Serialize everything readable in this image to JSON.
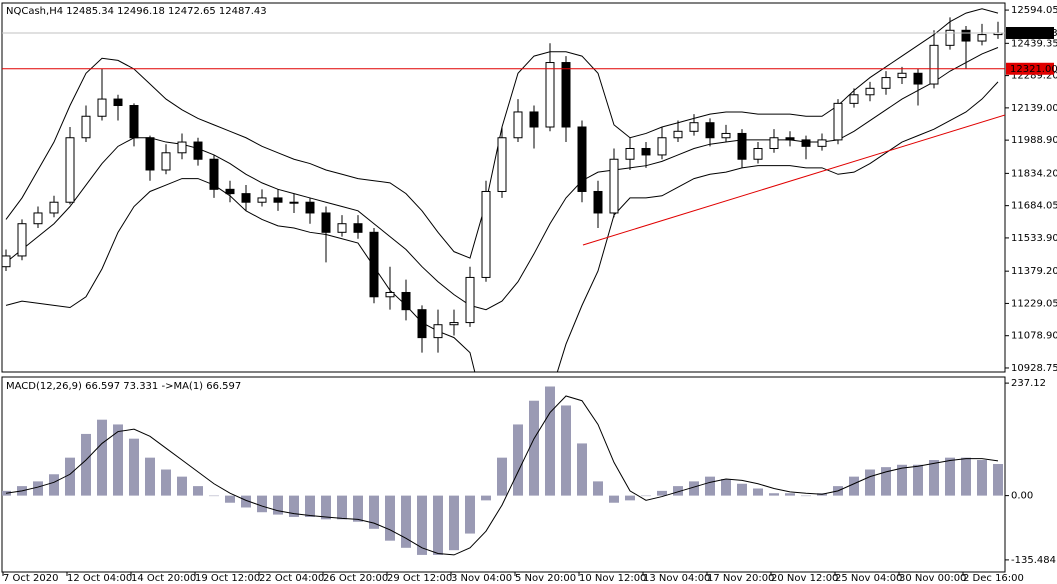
{
  "chart_data": [
    {
      "type": "candlestick",
      "title": "NQCash,H4  12485.34 12496.18 12472.65 12487.43",
      "categories": [
        "7 Oct 2020",
        null,
        null,
        null,
        "12 Oct 04:00",
        null,
        null,
        null,
        "14 Oct 20:00",
        null,
        null,
        null,
        "19 Oct 12:00",
        null,
        null,
        null,
        "22 Oct 04:00",
        null,
        null,
        null,
        "26 Oct 20:00",
        null,
        null,
        null,
        "29 Oct 12:00",
        null,
        null,
        null,
        "3 Nov 04:00",
        null,
        null,
        null,
        "5 Nov 20:00",
        null,
        null,
        null,
        "10 Nov 12:00",
        null,
        null,
        null,
        "13 Nov 04:00",
        null,
        null,
        null,
        "17 Nov 20:00",
        null,
        null,
        null,
        "20 Nov 12:00",
        null,
        null,
        null,
        "25 Nov 04:00",
        null,
        null,
        null,
        "30 Nov 00:00",
        null,
        null,
        null,
        "2 Dec 16:00",
        null,
        null
      ],
      "open": [
        11400,
        11450,
        11600,
        11650,
        11700,
        12000,
        12100,
        12180,
        12150,
        12000,
        11850,
        11930,
        11980,
        11900,
        11760,
        11740,
        11700,
        11720,
        11700,
        11700,
        11650,
        11560,
        11600,
        11560,
        11260,
        11280,
        11200,
        11070,
        11130,
        11140,
        11350,
        11750,
        12000,
        12120,
        12050,
        12350,
        12050,
        11750,
        11650,
        11900,
        11950,
        11920,
        12000,
        12030,
        12070,
        12000,
        12020,
        11900,
        11950,
        12000,
        11990,
        11960,
        11990,
        12160,
        12200,
        12230,
        12280,
        12300,
        12250,
        12430,
        12500,
        12450,
        12480
      ],
      "high": [
        11480,
        11620,
        11680,
        11730,
        12050,
        12150,
        12320,
        12200,
        12160,
        12010,
        11970,
        12020,
        12000,
        11920,
        11800,
        11780,
        11760,
        11760,
        11740,
        11720,
        11680,
        11640,
        11640,
        11580,
        11400,
        11340,
        11220,
        11200,
        11200,
        11400,
        11800,
        12050,
        12180,
        12150,
        12440,
        12380,
        12080,
        11800,
        11950,
        12000,
        11980,
        12050,
        12080,
        12110,
        12090,
        12060,
        12040,
        11980,
        12040,
        12030,
        12010,
        12020,
        12180,
        12230,
        12260,
        12310,
        12330,
        12320,
        12500,
        12560,
        12520,
        12530,
        12540
      ],
      "low": [
        11380,
        11430,
        11580,
        11630,
        11690,
        11980,
        12080,
        12080,
        11960,
        11800,
        11830,
        11900,
        11870,
        11720,
        11700,
        11660,
        11680,
        11660,
        11650,
        11600,
        11420,
        11540,
        11530,
        11230,
        11200,
        11150,
        11000,
        11000,
        11080,
        11120,
        11330,
        11720,
        11980,
        11950,
        12030,
        11980,
        11700,
        11580,
        11630,
        11850,
        11860,
        11900,
        11980,
        12010,
        11960,
        11980,
        11860,
        11880,
        11930,
        11960,
        11900,
        11940,
        11970,
        12140,
        12170,
        12200,
        12250,
        12150,
        12230,
        12410,
        12320,
        12430,
        12460
      ],
      "close": [
        11450,
        11600,
        11650,
        11700,
        12000,
        12100,
        12180,
        12150,
        12000,
        11850,
        11930,
        11980,
        11900,
        11760,
        11740,
        11700,
        11720,
        11700,
        11700,
        11650,
        11560,
        11600,
        11560,
        11260,
        11280,
        11200,
        11070,
        11130,
        11140,
        11350,
        11750,
        12000,
        12120,
        12050,
        12350,
        12050,
        11750,
        11650,
        11900,
        11950,
        11920,
        12000,
        12030,
        12070,
        12000,
        12020,
        11900,
        11950,
        12000,
        11990,
        11960,
        11990,
        12160,
        12200,
        12230,
        12280,
        12300,
        12250,
        12430,
        12500,
        12450,
        12480,
        12487.43
      ],
      "bands": {
        "upper": [
          11620,
          11720,
          11850,
          11980,
          12150,
          12300,
          12370,
          12360,
          12320,
          12250,
          12180,
          12130,
          12090,
          12060,
          12030,
          12000,
          11960,
          11930,
          11900,
          11880,
          11850,
          11830,
          11810,
          11800,
          11790,
          11740,
          11660,
          11560,
          11470,
          11440,
          11700,
          12050,
          12300,
          12380,
          12400,
          12400,
          12380,
          12300,
          12060,
          12000,
          12020,
          12050,
          12070,
          12090,
          12110,
          12120,
          12120,
          12110,
          12110,
          12110,
          12100,
          12100,
          12150,
          12220,
          12280,
          12330,
          12380,
          12430,
          12480,
          12540,
          12580,
          12600,
          12580
        ],
        "middle": [
          11420,
          11480,
          11540,
          11600,
          11680,
          11780,
          11880,
          11960,
          12000,
          12000,
          11980,
          11970,
          11950,
          11920,
          11880,
          11830,
          11790,
          11760,
          11740,
          11720,
          11700,
          11680,
          11660,
          11600,
          11540,
          11480,
          11400,
          11330,
          11270,
          11220,
          11200,
          11240,
          11330,
          11460,
          11600,
          11720,
          11800,
          11840,
          11850,
          11860,
          11870,
          11890,
          11920,
          11950,
          11970,
          11980,
          11990,
          11990,
          11990,
          11990,
          11980,
          11980,
          11990,
          12030,
          12080,
          12130,
          12180,
          12220,
          12260,
          12310,
          12350,
          12390,
          12420
        ],
        "lower": [
          11220,
          11240,
          11230,
          11220,
          11210,
          11260,
          11390,
          11560,
          11680,
          11750,
          11780,
          11810,
          11810,
          11780,
          11730,
          11660,
          11620,
          11590,
          11580,
          11560,
          11550,
          11530,
          11510,
          11400,
          11290,
          11220,
          11140,
          11100,
          11070,
          11000,
          10700,
          10430,
          10360,
          10540,
          10800,
          11040,
          11220,
          11380,
          11640,
          11720,
          11720,
          11730,
          11770,
          11810,
          11830,
          11840,
          11860,
          11870,
          11870,
          11870,
          11860,
          11860,
          11830,
          11840,
          11880,
          11930,
          11980,
          12010,
          12040,
          12080,
          12120,
          12180,
          12260
        ]
      },
      "hline": {
        "value": 12321,
        "label": "12321.00",
        "color": "#e00000"
      },
      "last": {
        "value": 12487.43,
        "label": "12487.43"
      },
      "trendline": {
        "x": [
          36.06,
          62.44
        ],
        "y": [
          11501,
          12106
        ],
        "color": "#e00000"
      },
      "ylim": [
        10910,
        12627
      ],
      "yticks": [
        12594.05,
        12439.35,
        {
          "value": 12289.2,
          "label": "12289.20"
        },
        {
          "value": 12139,
          "label": "12139.00"
        },
        {
          "value": 11988.9,
          "label": "11988.90"
        },
        {
          "value": 11834.2,
          "label": "11834.20"
        },
        11684.05,
        {
          "value": 11533.9,
          "label": "11533.90"
        },
        {
          "value": 11379.2,
          "label": "11379.20"
        },
        11229.05,
        {
          "value": 11078.9,
          "label": "11078.90"
        },
        10928.75
      ]
    },
    {
      "type": "bar",
      "title": "MACD(12,26,9) 66.597 73.331 ->MA(1) 66.597",
      "values": [
        10,
        20,
        30,
        45,
        80,
        130,
        160,
        150,
        120,
        80,
        55,
        40,
        20,
        0,
        -15,
        -25,
        -35,
        -40,
        -45,
        -45,
        -50,
        -50,
        -55,
        -70,
        -95,
        -110,
        -125,
        -125,
        -115,
        -80,
        -10,
        80,
        150,
        200,
        230,
        190,
        110,
        30,
        -15,
        -10,
        0,
        10,
        20,
        30,
        40,
        35,
        25,
        15,
        5,
        5,
        0,
        5,
        20,
        40,
        55,
        60,
        65,
        65,
        75,
        80,
        80,
        75,
        66.597
      ],
      "signal": [
        5,
        10,
        18,
        28,
        45,
        75,
        110,
        135,
        140,
        125,
        100,
        75,
        50,
        25,
        5,
        -10,
        -22,
        -32,
        -38,
        -42,
        -45,
        -48,
        -50,
        -58,
        -72,
        -90,
        -110,
        -122,
        -125,
        -110,
        -75,
        -20,
        50,
        120,
        175,
        210,
        200,
        150,
        70,
        10,
        -10,
        -2,
        8,
        18,
        28,
        35,
        32,
        25,
        15,
        8,
        5,
        3,
        10,
        25,
        40,
        50,
        58,
        62,
        68,
        74,
        78,
        78,
        73.331
      ],
      "color": "#9a9ab4",
      "ylim": [
        -161,
        250
      ],
      "yticks": [
        237.12,
        {
          "value": 0,
          "label": "0.00"
        },
        -135.484
      ]
    }
  ]
}
